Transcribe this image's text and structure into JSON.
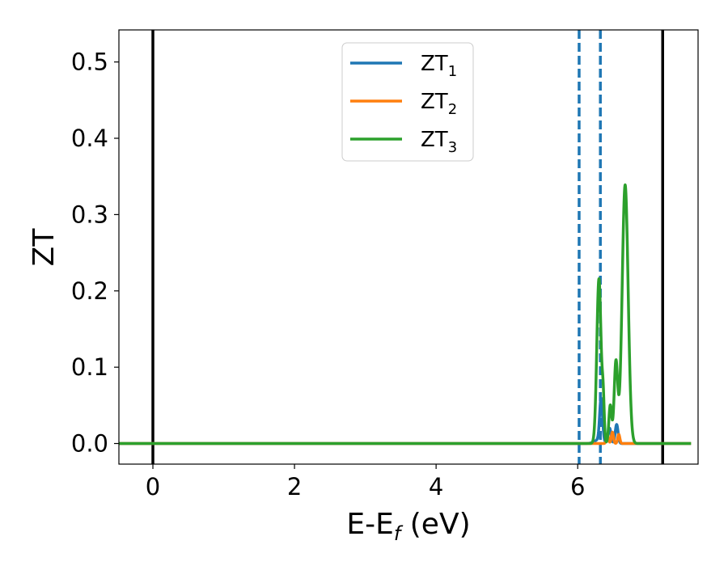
{
  "chart_data": {
    "type": "line",
    "xlabel_main": "E-E",
    "xlabel_sub": "f",
    "xlabel_unit": " (eV)",
    "ylabel": "ZT",
    "xlim": [
      -0.48,
      7.7
    ],
    "ylim": [
      -0.027,
      0.542
    ],
    "x_ticks": [
      {
        "value": 0,
        "label": "0"
      },
      {
        "value": 2,
        "label": "2"
      },
      {
        "value": 4,
        "label": "4"
      },
      {
        "value": 6,
        "label": "6"
      }
    ],
    "y_ticks": [
      {
        "value": 0.0,
        "label": "0.0"
      },
      {
        "value": 0.1,
        "label": "0.1"
      },
      {
        "value": 0.2,
        "label": "0.2"
      },
      {
        "value": 0.3,
        "label": "0.3"
      },
      {
        "value": 0.4,
        "label": "0.4"
      },
      {
        "value": 0.5,
        "label": "0.5"
      }
    ],
    "grid": false,
    "legend_position": "top-center",
    "x_range": [
      -0.48,
      7.6
    ],
    "vlines_solid": [
      0.0,
      7.2
    ],
    "vlines_dashed": [
      6.02,
      6.32
    ],
    "series": [
      {
        "label_main": "ZT",
        "label_sub": "1",
        "color": "#1f77b4",
        "peaks": [
          {
            "x": 6.3,
            "height": 0.005,
            "width": 0.06
          },
          {
            "x": 6.33,
            "height": 0.055,
            "width": 0.02
          },
          {
            "x": 6.45,
            "height": 0.02,
            "width": 0.02
          },
          {
            "x": 6.55,
            "height": 0.025,
            "width": 0.02
          }
        ]
      },
      {
        "label_main": "ZT",
        "label_sub": "2",
        "color": "#ff7f0e",
        "peaks": [
          {
            "x": 6.42,
            "height": 0.012,
            "width": 0.015
          },
          {
            "x": 6.49,
            "height": 0.015,
            "width": 0.015
          },
          {
            "x": 6.58,
            "height": 0.012,
            "width": 0.015
          }
        ]
      },
      {
        "label_main": "ZT",
        "label_sub": "3",
        "color": "#2ca02c",
        "peaks": [
          {
            "x": 6.3,
            "height": 0.216,
            "width": 0.03
          },
          {
            "x": 6.36,
            "height": 0.05,
            "width": 0.015
          },
          {
            "x": 6.46,
            "height": 0.05,
            "width": 0.02
          },
          {
            "x": 6.54,
            "height": 0.107,
            "width": 0.025
          },
          {
            "x": 6.67,
            "height": 0.339,
            "width": 0.042
          }
        ]
      }
    ]
  }
}
